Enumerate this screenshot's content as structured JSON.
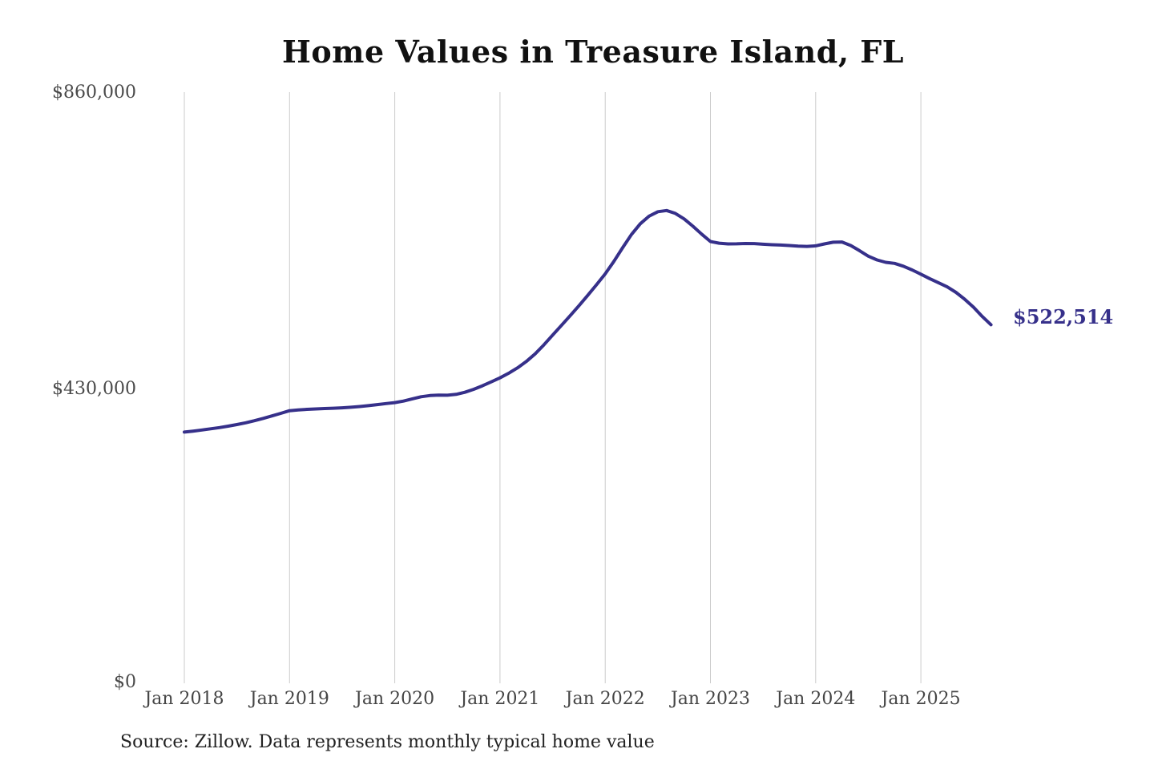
{
  "chart_data": {
    "type": "line",
    "title": "Home Values in Treasure Island, FL",
    "source_note": "Source: Zillow. Data represents monthly typical home value",
    "series_name": "Monthly typical home value",
    "legend": "none",
    "grid": "vertical",
    "x_frequency": "monthly",
    "x_start": "2018-01",
    "x_end": "2025-09",
    "x_tick_labels": [
      "Jan 2018",
      "Jan 2019",
      "Jan 2020",
      "Jan 2021",
      "Jan 2022",
      "Jan 2023",
      "Jan 2024",
      "Jan 2025"
    ],
    "y_axis": {
      "ylim": [
        0,
        860000
      ],
      "ticks": [
        {
          "label": "$860,000",
          "value": 860000
        },
        {
          "label": "$430,000",
          "value": 430000
        },
        {
          "label": "$0",
          "value": 0
        }
      ]
    },
    "values": [
      366800,
      368200,
      369800,
      371500,
      373300,
      375400,
      377700,
      380300,
      383300,
      386700,
      390300,
      394000,
      397800,
      398900,
      399800,
      400400,
      400900,
      401400,
      402000,
      402800,
      403800,
      405100,
      406600,
      408100,
      409500,
      411800,
      415000,
      418000,
      419800,
      420300,
      420200,
      421500,
      424500,
      428800,
      434000,
      439600,
      445400,
      452200,
      460000,
      469200,
      480200,
      493200,
      507500,
      521500,
      535500,
      550000,
      565000,
      580500,
      596300,
      614500,
      634500,
      653500,
      669000,
      680000,
      686500,
      688200,
      684000,
      676000,
      665500,
      654000,
      643200,
      640800,
      639800,
      639900,
      640400,
      640200,
      639300,
      638600,
      638200,
      637500,
      636600,
      636200,
      637000,
      639800,
      642200,
      642600,
      637500,
      630000,
      622000,
      616500,
      613000,
      611500,
      607500,
      602000,
      595800,
      589500,
      583500,
      577500,
      569500,
      559500,
      548000,
      534500,
      522514
    ],
    "end_label": "$522,514",
    "end_value": 522514,
    "line_color": "#36308a",
    "grid_color": "#cbcbcb",
    "title_color": "#111111",
    "axis_label_color": "#4a4a4a",
    "source_color": "#222222",
    "background": "#ffffff"
  }
}
